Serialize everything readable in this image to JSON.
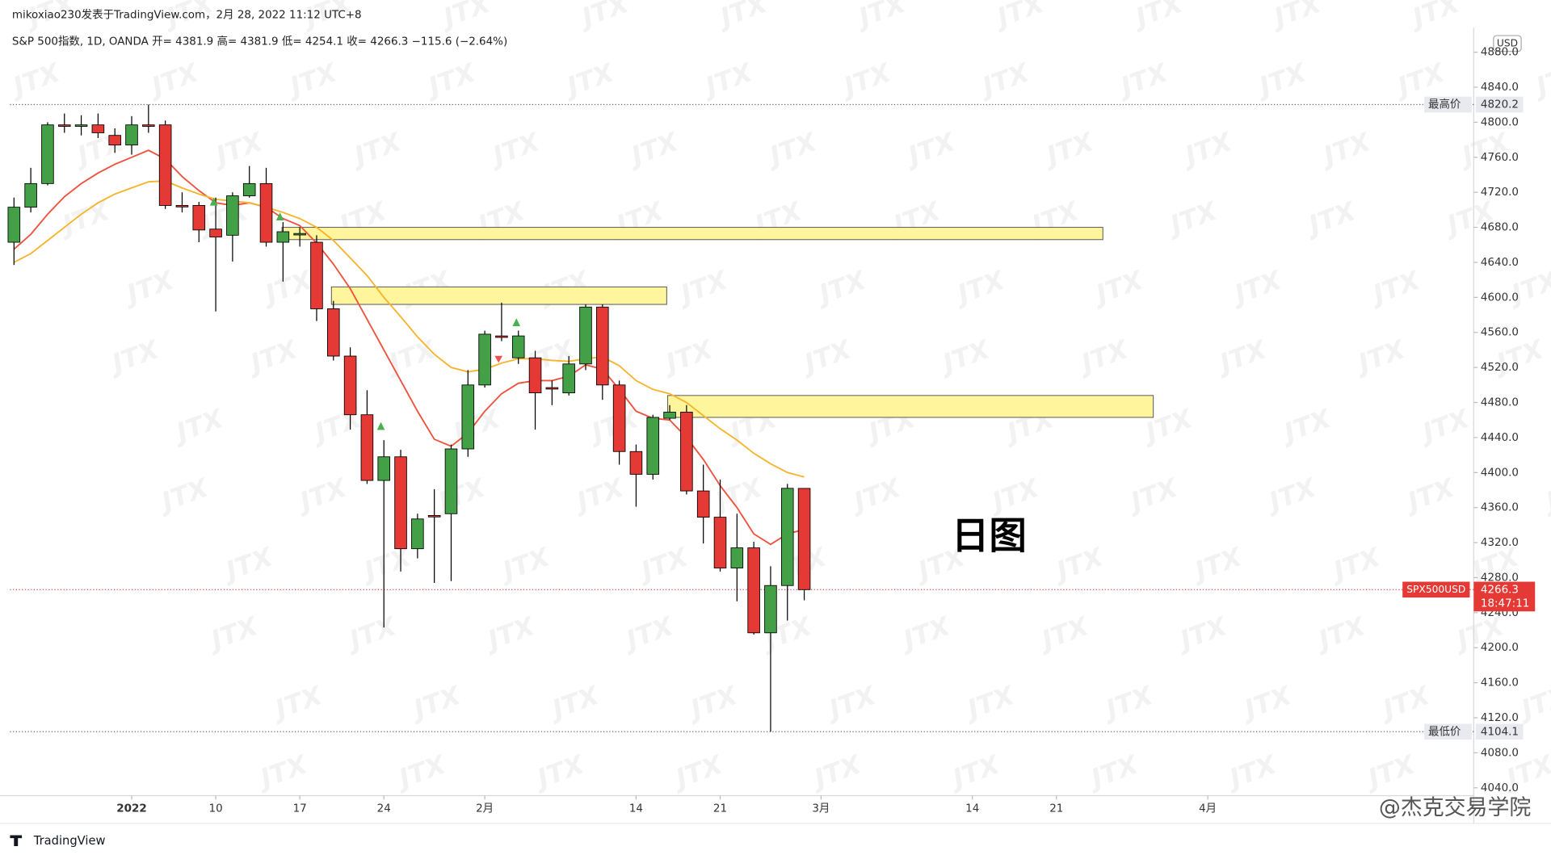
{
  "header": "mikoxiao230发表于TradingView.com，2月 28, 2022 11:12 UTC+8",
  "chart_data": {
    "type": "candlestick",
    "symbol": "S&P 500指数, 1D, OANDA",
    "ohlc_labels": [
      "开=",
      "高=",
      "低=",
      "收="
    ],
    "change": "−115.6",
    "change_pct": "(−2.64%)",
    "up_color": "#43a047",
    "down_color": "#e53935",
    "open": [
      4663,
      4703,
      4730,
      4797,
      4797,
      4797,
      4785,
      4774,
      4797,
      4797,
      4705,
      4705,
      4678,
      4671,
      4716,
      4730,
      4663,
      4672,
      4663,
      4587,
      4533,
      4466,
      4391,
      4418,
      4313,
      4351,
      4353,
      4427,
      4500,
      4556,
      4531,
      4531,
      4497,
      4491,
      4524,
      4589,
      4500,
      4424,
      4398,
      4462,
      4469,
      4379,
      4349,
      4291,
      4314,
      4217,
      4271,
      4381.9
    ],
    "high": [
      4714,
      4748,
      4800,
      4810,
      4808,
      4810,
      4793,
      4807,
      4820.2,
      4802,
      4720,
      4709,
      4714,
      4720,
      4750,
      4748,
      4686,
      4680,
      4671,
      4596,
      4543,
      4494,
      4437,
      4426,
      4353,
      4381,
      4432,
      4517,
      4562,
      4594,
      4562,
      4539,
      4505,
      4533,
      4592,
      4592,
      4505,
      4432,
      4466,
      4477,
      4477,
      4409,
      4392,
      4353,
      4321,
      4293,
      4387,
      4381.9
    ],
    "low": [
      4637,
      4697,
      4728,
      4788,
      4785,
      4782,
      4765,
      4763,
      4788,
      4701,
      4697,
      4663,
      4584,
      4641,
      4714,
      4658,
      4618,
      4658,
      4573,
      4528,
      4449,
      4387,
      4223,
      4287,
      4302,
      4274,
      4276,
      4418,
      4497,
      4550,
      4524,
      4449,
      4477,
      4488,
      4517,
      4483,
      4409,
      4361,
      4392,
      4460,
      4375,
      4319,
      4287,
      4253,
      4215,
      4104.1,
      4231,
      4254.1
    ],
    "close": [
      4703,
      4730,
      4797,
      4796,
      4797,
      4788,
      4774,
      4797,
      4796,
      4705,
      4704,
      4677,
      4669,
      4716,
      4730,
      4663,
      4675,
      4673,
      4587,
      4533,
      4466,
      4391,
      4418,
      4313,
      4347,
      4350,
      4427,
      4500,
      4558,
      4555,
      4556,
      4491,
      4496,
      4524,
      4589,
      4500,
      4424,
      4398,
      4463,
      4469,
      4379,
      4349,
      4291,
      4314,
      4217,
      4271,
      4382,
      4266.3
    ],
    "lines": [
      {
        "color": "#f0503c",
        "values": [
          4655,
          4672,
          4695,
          4715,
          4730,
          4742,
          4752,
          4760,
          4768,
          4758,
          4738,
          4722,
          4708,
          4705,
          4708,
          4703,
          4690,
          4682,
          4662,
          4638,
          4610,
          4575,
          4540,
          4505,
          4470,
          4438,
          4430,
          4445,
          4470,
          4490,
          4502,
          4505,
          4505,
          4510,
          4523,
          4518,
          4495,
          4470,
          4462,
          4460,
          4440,
          4415,
          4385,
          4360,
          4330,
          4318,
          4330,
          4335
        ]
      },
      {
        "color": "#f5b42a",
        "values": [
          4640,
          4650,
          4665,
          4680,
          4695,
          4708,
          4718,
          4725,
          4732,
          4733,
          4725,
          4718,
          4712,
          4710,
          4708,
          4703,
          4697,
          4690,
          4680,
          4665,
          4645,
          4625,
          4600,
          4578,
          4555,
          4535,
          4520,
          4515,
          4518,
          4525,
          4530,
          4530,
          4528,
          4527,
          4530,
          4532,
          4522,
          4505,
          4495,
          4490,
          4480,
          4465,
          4450,
          4437,
          4422,
          4410,
          4400,
          4395
        ]
      }
    ],
    "zones": [
      {
        "low": 4666,
        "high": 4680
      },
      {
        "low": 4592,
        "high": 4612
      },
      {
        "low": 4463,
        "high": 4488
      }
    ],
    "zone_color": "#fff59d",
    "xlim": [
      -0.2353,
      86.7
    ],
    "ylim": [
      4031,
      4908
    ],
    "xticks": [
      {
        "value": 7,
        "label": "2022"
      },
      {
        "value": 12,
        "label": "10"
      },
      {
        "value": 17,
        "label": "17"
      },
      {
        "value": 22,
        "label": "24"
      },
      {
        "value": 28,
        "label": "2月"
      },
      {
        "value": 37,
        "label": "14"
      },
      {
        "value": 42,
        "label": "21"
      },
      {
        "value": 48,
        "label": "3月"
      },
      {
        "value": 57,
        "label": "14"
      },
      {
        "value": 62,
        "label": "21"
      },
      {
        "value": 71,
        "label": "4月"
      }
    ],
    "yticks": [
      {
        "value": 4040,
        "label": "4040.0"
      },
      {
        "value": 4080,
        "label": "4080.0"
      },
      {
        "value": 4120,
        "label": "4120.0"
      },
      {
        "value": 4160,
        "label": "4160.0"
      },
      {
        "value": 4200,
        "label": "4200.0"
      },
      {
        "value": 4240,
        "label": "4240.0"
      },
      {
        "value": 4280,
        "label": "4280.0"
      },
      {
        "value": 4320,
        "label": "4320.0"
      },
      {
        "value": 4360,
        "label": "4360.0"
      },
      {
        "value": 4400,
        "label": "4400.0"
      },
      {
        "value": 4440,
        "label": "4440.0"
      },
      {
        "value": 4480,
        "label": "4480.0"
      },
      {
        "value": 4520,
        "label": "4520.0"
      },
      {
        "value": 4560,
        "label": "4560.0"
      },
      {
        "value": 4600,
        "label": "4600.0"
      },
      {
        "value": 4640,
        "label": "4640.0"
      },
      {
        "value": 4680,
        "label": "4680.0"
      },
      {
        "value": 4720,
        "label": "4720.0"
      },
      {
        "value": 4760,
        "label": "4760.0"
      },
      {
        "value": 4800,
        "label": "4800.0"
      },
      {
        "value": 4840,
        "label": "4840.0"
      },
      {
        "value": 4880,
        "label": "4880.0"
      }
    ],
    "high_label": "最高价",
    "low_label": "最低价",
    "ticker": "SPX500USD",
    "countdown": "18:47:11",
    "currency": "USD",
    "annotation": "日图",
    "watermark": "JTX"
  },
  "brand": "TradingView",
  "credit": "@杰克交易学院"
}
